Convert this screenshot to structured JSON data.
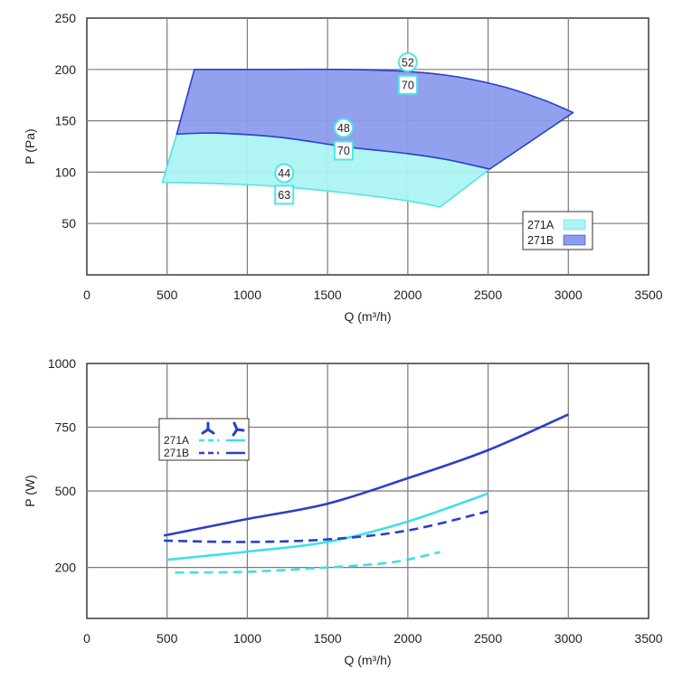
{
  "chart_data": [
    {
      "type": "area",
      "xlabel": "Q (m³/h)",
      "ylabel": "P (Pa)",
      "xlim": [
        0,
        3500
      ],
      "ylim": [
        0,
        250
      ],
      "xticks": [
        0,
        500,
        1000,
        1500,
        2000,
        2500,
        3000,
        3500
      ],
      "yticks": [
        50,
        100,
        150,
        200,
        250
      ],
      "grid": true,
      "legend_position": "bottom-right",
      "series": [
        {
          "name": "271A",
          "color": "#adf3f3",
          "stroke": "#4fe5e5",
          "upper": [
            [
              560,
              137
            ],
            [
              800,
              138
            ],
            [
              1200,
              134
            ],
            [
              1600,
              125
            ],
            [
              2000,
              118
            ],
            [
              2250,
              112
            ],
            [
              2510,
              103
            ]
          ],
          "lower": [
            [
              470,
              90
            ],
            [
              800,
              89
            ],
            [
              1200,
              86
            ],
            [
              1600,
              80
            ],
            [
              2000,
              72
            ],
            [
              2200,
              66
            ]
          ]
        },
        {
          "name": "271B",
          "color": "#8c9cec",
          "stroke": "#2a3fc8",
          "upper": [
            [
              670,
              200
            ],
            [
              1200,
              200
            ],
            [
              1600,
              200
            ],
            [
              2000,
              198
            ],
            [
              2300,
              193
            ],
            [
              2600,
              183
            ],
            [
              2850,
              170
            ],
            [
              3030,
              158
            ]
          ],
          "lower": [
            [
              560,
              137
            ],
            [
              800,
              138
            ],
            [
              1200,
              134
            ],
            [
              1600,
              125
            ],
            [
              2000,
              118
            ],
            [
              2250,
              112
            ],
            [
              2510,
              103
            ]
          ]
        }
      ],
      "annotations": [
        {
          "x": 2000,
          "y": 207,
          "text": "52",
          "shape": "circle"
        },
        {
          "x": 2000,
          "y": 185,
          "text": "70",
          "shape": "box"
        },
        {
          "x": 1600,
          "y": 143,
          "text": "48",
          "shape": "circle"
        },
        {
          "x": 1600,
          "y": 121,
          "text": "70",
          "shape": "box"
        },
        {
          "x": 1230,
          "y": 99,
          "text": "44",
          "shape": "circle"
        },
        {
          "x": 1230,
          "y": 78,
          "text": "63",
          "shape": "box"
        }
      ]
    },
    {
      "type": "line",
      "xlabel": "Q (m³/h)",
      "ylabel": "P (W)",
      "xlim": [
        0,
        3500
      ],
      "ylim": [
        0,
        1000
      ],
      "xticks": [
        0,
        500,
        1000,
        1500,
        2000,
        2500,
        3000,
        3500
      ],
      "yticks": [
        200,
        500,
        750,
        1000
      ],
      "grid": true,
      "legend_position": "top-left",
      "legend_icons": [
        "fan-blade-icon",
        "fan-blade-reverse-icon"
      ],
      "series": [
        {
          "name": "271A",
          "variant": "solid",
          "color": "#3ee0e6",
          "points": [
            [
              500,
              230
            ],
            [
              1000,
              262
            ],
            [
              1500,
              300
            ],
            [
              2000,
              380
            ],
            [
              2500,
              490
            ]
          ]
        },
        {
          "name": "271A",
          "variant": "dashed",
          "color": "#3ee0e6",
          "points": [
            [
              550,
              180
            ],
            [
              1000,
              183
            ],
            [
              1500,
              200
            ],
            [
              1900,
              220
            ],
            [
              2200,
              260
            ]
          ]
        },
        {
          "name": "271B",
          "variant": "solid",
          "color": "#2a3fc8",
          "points": [
            [
              480,
              325
            ],
            [
              1000,
              390
            ],
            [
              1500,
              450
            ],
            [
              2000,
              550
            ],
            [
              2500,
              660
            ],
            [
              3000,
              800
            ]
          ]
        },
        {
          "name": "271B",
          "variant": "dashed",
          "color": "#2a3fc8",
          "points": [
            [
              480,
              305
            ],
            [
              1000,
              300
            ],
            [
              1500,
              310
            ],
            [
              2000,
              345
            ],
            [
              2500,
              420
            ]
          ]
        }
      ]
    }
  ]
}
